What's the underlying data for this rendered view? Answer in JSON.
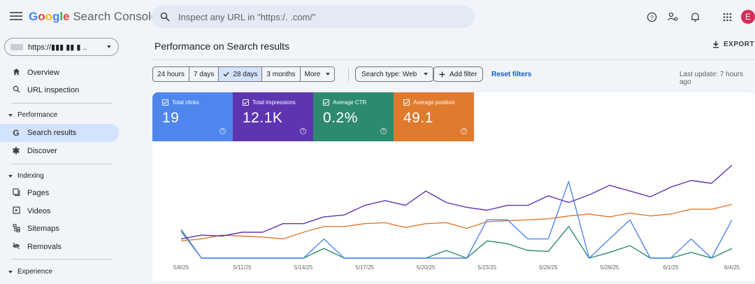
{
  "app": {
    "logo_google": [
      "G",
      "o",
      "o",
      "g",
      "l",
      "e"
    ],
    "logo_product": "Search Console",
    "search_placeholder": "Inspect any URL in \"https:/.            .com/\"",
    "avatar_letter": "E"
  },
  "sidebar": {
    "property_label": "https://▮▮▮   ▮▮  ▮ ..",
    "items_top": [
      {
        "label": "Overview",
        "icon": "home-icon"
      },
      {
        "label": "URL inspection",
        "icon": "search-icon"
      }
    ],
    "performance": {
      "section": "Performance",
      "items": [
        {
          "label": "Search results",
          "icon": "google-g-icon"
        },
        {
          "label": "Discover",
          "icon": "asterisk-icon"
        }
      ]
    },
    "indexing": {
      "section": "Indexing",
      "items": [
        {
          "label": "Pages",
          "icon": "pages-icon"
        },
        {
          "label": "Videos",
          "icon": "video-icon"
        },
        {
          "label": "Sitemaps",
          "icon": "sitemap-icon"
        },
        {
          "label": "Removals",
          "icon": "eye-off-icon"
        }
      ]
    },
    "experience": {
      "section": "Experience"
    }
  },
  "main": {
    "title": "Performance on Search results",
    "export_label": "EXPORT",
    "ranges": [
      "24 hours",
      "7 days",
      "28 days",
      "3 months",
      "More"
    ],
    "selected_range": "28 days",
    "search_type": "Search type: Web",
    "add_filter": "Add filter",
    "reset_filters": "Reset filters",
    "last_update": "Last update: 7 hours ago"
  },
  "metrics": [
    {
      "label": "Total clicks",
      "value": "19",
      "color": "#4f86ed"
    },
    {
      "label": "Total impressions",
      "value": "12.1K",
      "color": "#5e35b1"
    },
    {
      "label": "Average CTR",
      "value": "0.2%",
      "color": "#2d8a6e"
    },
    {
      "label": "Average position",
      "value": "49.1",
      "color": "#e07b2e"
    }
  ],
  "chart_data": {
    "type": "line",
    "x_tick_labels": [
      "5/8/25",
      "5/11/25",
      "5/14/25",
      "5/17/25",
      "5/20/25",
      "5/23/25",
      "5/26/25",
      "5/29/25",
      "6/1/25",
      "6/4/25"
    ],
    "x": [
      "5/8/25",
      "5/9/25",
      "5/10/25",
      "5/11/25",
      "5/12/25",
      "5/13/25",
      "5/14/25",
      "5/15/25",
      "5/16/25",
      "5/17/25",
      "5/18/25",
      "5/19/25",
      "5/20/25",
      "5/21/25",
      "5/22/25",
      "5/23/25",
      "5/24/25",
      "5/25/25",
      "5/26/25",
      "5/27/25",
      "5/28/25",
      "5/29/25",
      "5/30/25",
      "5/31/25",
      "6/1/25",
      "6/2/25",
      "6/3/25",
      "6/4/25"
    ],
    "grid": false,
    "series": [
      {
        "name": "Total clicks",
        "color": "#4f86ed",
        "values": [
          0.3,
          0.0,
          0.0,
          0.0,
          0.0,
          0.0,
          0.0,
          0.2,
          0.0,
          0.0,
          0.0,
          0.0,
          0.0,
          0.0,
          0.0,
          0.4,
          0.4,
          0.2,
          0.2,
          0.8,
          0.0,
          0.2,
          0.4,
          0.0,
          0.0,
          0.2,
          0.0,
          0.4
        ]
      },
      {
        "name": "Total impressions",
        "color": "#5e35b1",
        "values": [
          0.2,
          0.24,
          0.23,
          0.27,
          0.27,
          0.36,
          0.36,
          0.43,
          0.45,
          0.55,
          0.6,
          0.55,
          0.7,
          0.58,
          0.53,
          0.5,
          0.55,
          0.55,
          0.65,
          0.58,
          0.66,
          0.76,
          0.7,
          0.64,
          0.74,
          0.81,
          0.78,
          0.97
        ]
      },
      {
        "name": "Average CTR",
        "color": "#2d8a6e",
        "values": [
          0.28,
          0.0,
          0.0,
          0.0,
          0.0,
          0.0,
          0.0,
          0.1,
          0.0,
          0.0,
          0.0,
          0.0,
          0.0,
          0.08,
          0.0,
          0.18,
          0.15,
          0.08,
          0.07,
          0.33,
          0.0,
          0.06,
          0.13,
          0.0,
          0.0,
          0.06,
          0.0,
          0.1
        ]
      },
      {
        "name": "Average position",
        "color": "#e07b2e",
        "values": [
          0.18,
          0.2,
          0.24,
          0.23,
          0.22,
          0.2,
          0.27,
          0.33,
          0.33,
          0.36,
          0.37,
          0.32,
          0.36,
          0.37,
          0.31,
          0.38,
          0.39,
          0.4,
          0.41,
          0.44,
          0.46,
          0.43,
          0.47,
          0.44,
          0.46,
          0.51,
          0.51,
          0.56
        ]
      }
    ]
  }
}
